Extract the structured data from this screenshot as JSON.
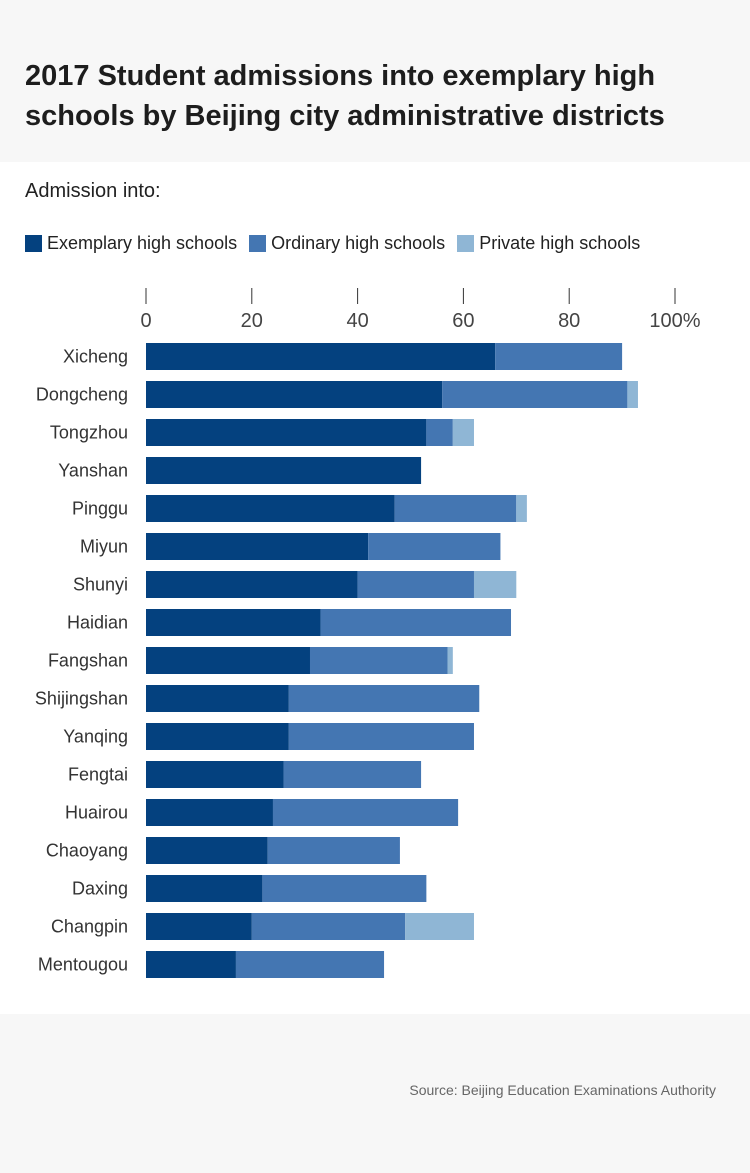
{
  "header": {
    "title": "2017 Student admissions into exemplary high schools by Beijing city administrative districts"
  },
  "legend_title": "Admission into:",
  "footer": {
    "source": "Source: Beijing Education Examinations Authority"
  },
  "colors": {
    "exemplary": "#04417f",
    "ordinary": "#4476b2",
    "private": "#8fb6d5"
  },
  "chart_data": {
    "type": "bar",
    "orientation": "horizontal",
    "stacked": true,
    "categories": [
      "Xicheng",
      "Dongcheng",
      "Tongzhou",
      "Yanshan",
      "Pinggu",
      "Miyun",
      "Shunyi",
      "Haidian",
      "Fangshan",
      "Shijingshan",
      "Yanqing",
      "Fengtai",
      "Huairou",
      "Chaoyang",
      "Daxing",
      "Changpin",
      "Mentougou"
    ],
    "series": [
      {
        "name": "Exemplary high schools",
        "color": "#04417f",
        "values": [
          66,
          56,
          53,
          52,
          47,
          42,
          40,
          33,
          31,
          27,
          27,
          26,
          24,
          23,
          22,
          20,
          17
        ]
      },
      {
        "name": "Ordinary high schools",
        "color": "#4476b2",
        "values": [
          24,
          35,
          5,
          0,
          23,
          25,
          22,
          36,
          26,
          36,
          35,
          26,
          35,
          25,
          31,
          29,
          28
        ]
      },
      {
        "name": "Private high schools",
        "color": "#8fb6d5",
        "values": [
          0,
          2,
          4,
          0,
          2,
          0,
          8,
          0,
          1,
          0,
          0,
          0,
          0,
          0,
          0,
          13,
          0
        ]
      }
    ],
    "xlim": [
      0,
      100
    ],
    "ticks": [
      0,
      20,
      40,
      60,
      80,
      100
    ],
    "tick_labels": [
      "0",
      "20",
      "40",
      "60",
      "80",
      "100%"
    ],
    "axis_position": "top",
    "grid": false,
    "legend_position": "top-left"
  }
}
